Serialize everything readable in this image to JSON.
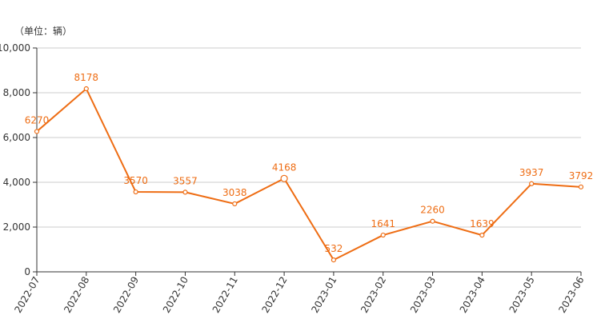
{
  "chart_data": {
    "type": "line",
    "unit_label": "（单位：辆）",
    "categories": [
      "2022-07",
      "2022-08",
      "2022-09",
      "2022-10",
      "2022-11",
      "2022-12",
      "2023-01",
      "2023-02",
      "2023-03",
      "2023-04",
      "2023-05",
      "2023-06"
    ],
    "series": [
      {
        "values": [
          6270,
          8178,
          3570,
          3557,
          3038,
          4168,
          532,
          1641,
          2260,
          1639,
          3937,
          3792
        ]
      }
    ],
    "ylim": [
      0,
      10000
    ],
    "yticks": [
      0,
      2000,
      4000,
      6000,
      8000,
      10000
    ],
    "ytick_labels": [
      "0",
      "2,000",
      "4,000",
      "6,000",
      "8,000",
      "10,000"
    ],
    "grid": true,
    "colors": {
      "line": "#ee6d14",
      "grid": "#cccccc",
      "axis": "#333333",
      "label": "#ee6d14"
    }
  }
}
